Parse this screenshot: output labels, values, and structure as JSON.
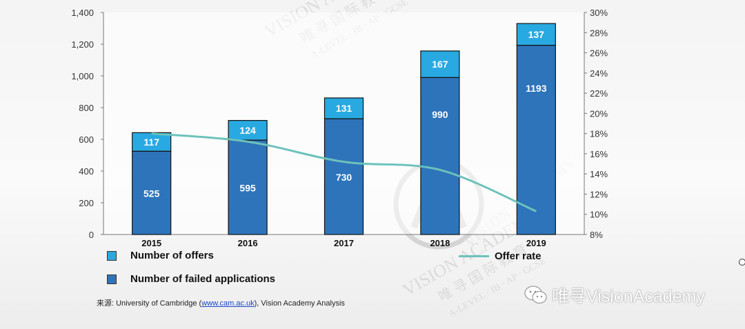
{
  "colors": {
    "offers": "#29a9e1",
    "failed": "#2e74ba",
    "offer_rate": "#6cc2bb"
  },
  "chart_data": {
    "type": "bar",
    "stacked": true,
    "categories": [
      "2015",
      "2016",
      "2017",
      "2018",
      "2019"
    ],
    "series": [
      {
        "name": "Number of failed applications",
        "values": [
          525,
          595,
          730,
          990,
          1193
        ]
      },
      {
        "name": "Number of offers",
        "values": [
          117,
          124,
          131,
          167,
          137
        ]
      }
    ],
    "line_series": {
      "name": "Offer rate",
      "axis": "right",
      "values": [
        18.0,
        17.2,
        15.2,
        14.4,
        10.3
      ]
    },
    "ylim": [
      0,
      1400
    ],
    "yticks": [
      "0",
      "200",
      "400",
      "600",
      "800",
      "1,000",
      "1,200",
      "1,400"
    ],
    "y2lim": [
      8,
      30
    ],
    "y2ticks": [
      "8%",
      "10%",
      "12%",
      "14%",
      "16%",
      "18%",
      "20%",
      "22%",
      "24%",
      "26%",
      "28%",
      "30%"
    ],
    "grid": false,
    "legend_position": "bottom"
  },
  "legend": {
    "offers": "Number of offers",
    "failed": "Number of failed applications",
    "offer_rate": "Offer rate"
  },
  "source": {
    "prefix": "来源:  University of Cambridge (",
    "link": "www.cam.ac.uk",
    "suffix": "), Vision Academy Analysis"
  },
  "watermark": {
    "main": "VISION ACADEMY",
    "cn": "唯 寻 国 际 教 育",
    "sub": "A-LEVEL · IB · AP · GCSE"
  },
  "brand": {
    "text": "唯寻VisionAcademy",
    "logo_icon": "wechat-icon"
  }
}
